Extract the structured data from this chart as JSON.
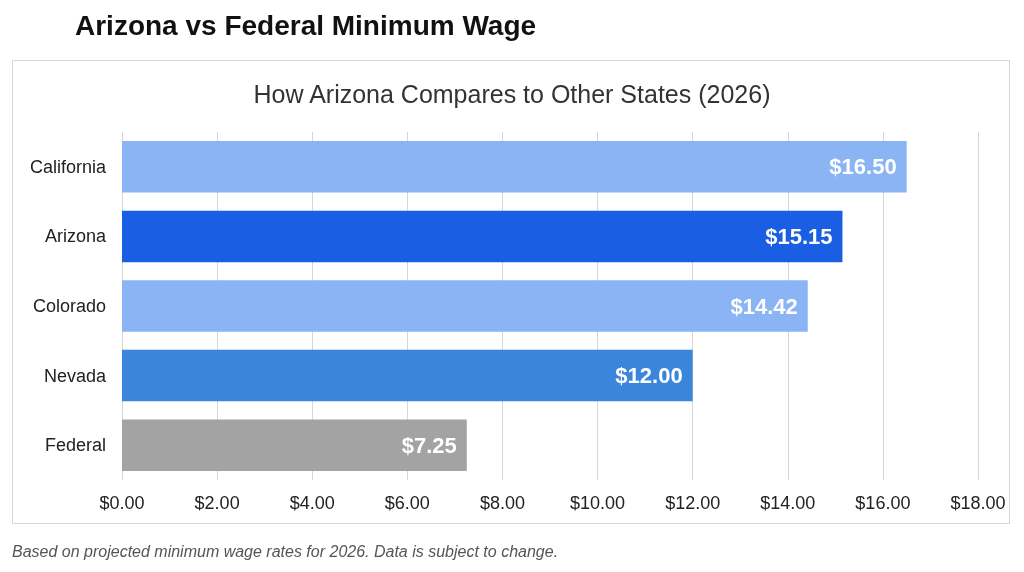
{
  "chart_data": {
    "type": "bar",
    "orientation": "horizontal",
    "title": "Arizona vs Federal Minimum Wage",
    "subtitle": "How Arizona Compares to Other States (2026)",
    "categories": [
      "California",
      "Arizona",
      "Colorado",
      "Nevada",
      "Federal"
    ],
    "values": [
      16.5,
      15.15,
      14.42,
      12,
      7.25
    ],
    "colors": [
      "#8ab4f3",
      "#1a5fe3",
      "#8ab4f3",
      "#3b86dc",
      "#a3a3a3"
    ],
    "value_labels": [
      "$16.50",
      "$15.15",
      "$14.42",
      "$12.00",
      "$7.25"
    ],
    "xlim": [
      0,
      18
    ],
    "xticks": [
      {
        "value": 0,
        "label": "$0.00"
      },
      {
        "value": 2,
        "label": "$2.00"
      },
      {
        "value": 4,
        "label": "$4.00"
      },
      {
        "value": 6,
        "label": "$6.00"
      },
      {
        "value": 8,
        "label": "$8.00"
      },
      {
        "value": 10,
        "label": "$10.00"
      },
      {
        "value": 12,
        "label": "$12.00"
      },
      {
        "value": 14,
        "label": "$14.00"
      },
      {
        "value": 16,
        "label": "$16.00"
      },
      {
        "value": 18,
        "label": "$18.00"
      }
    ],
    "grid": "x",
    "annotations": [
      "Based on projected minimum wage rates for 2026. Data is subject to change."
    ]
  }
}
